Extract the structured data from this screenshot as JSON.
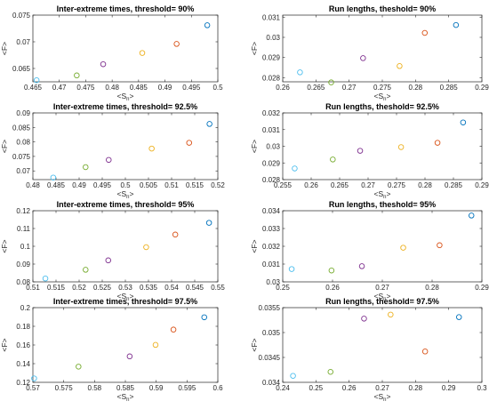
{
  "colors": [
    "#0072BD",
    "#D95319",
    "#EDB120",
    "#7E2F8E",
    "#77AC30",
    "#4DBEEE"
  ],
  "chart_data": [
    {
      "type": "scatter",
      "title": "Inter-extreme times, threshold= 90%",
      "xlabel_main": "<S",
      "xlabel_sub": "n",
      "xlabel_end": ">",
      "ylabel": "<F>",
      "xlim": [
        0.465,
        0.5
      ],
      "ylim": [
        0.0625,
        0.075
      ],
      "xticks": [
        "0.465",
        "0.47",
        "0.475",
        "0.48",
        "0.485",
        "0.49",
        "0.495",
        "0.5"
      ],
      "xtick_values": [
        0.465,
        0.47,
        0.475,
        0.48,
        0.485,
        0.49,
        0.495,
        0.5
      ],
      "yticks": [
        "0.065",
        "0.07",
        "0.075"
      ],
      "ytick_values": [
        0.065,
        0.07,
        0.075
      ],
      "points": [
        {
          "x": 0.498,
          "y": 0.0731
        },
        {
          "x": 0.4922,
          "y": 0.0696
        },
        {
          "x": 0.4857,
          "y": 0.0679
        },
        {
          "x": 0.4783,
          "y": 0.0658
        },
        {
          "x": 0.4733,
          "y": 0.0637
        },
        {
          "x": 0.4657,
          "y": 0.0628
        }
      ]
    },
    {
      "type": "scatter",
      "title": "Run lengths, theshold= 90%",
      "xlabel_main": "<S",
      "xlabel_sub": "n",
      "xlabel_end": ">",
      "ylabel": "<F>",
      "xlim": [
        0.26,
        0.29
      ],
      "ylim": [
        0.0278,
        0.0311
      ],
      "xticks": [
        "0.26",
        "0.265",
        "0.27",
        "0.275",
        "0.28",
        "0.285",
        "0.29"
      ],
      "xtick_values": [
        0.26,
        0.265,
        0.27,
        0.275,
        0.28,
        0.285,
        0.29
      ],
      "yticks": [
        "0.028",
        "0.029",
        "0.03",
        "0.031"
      ],
      "ytick_values": [
        0.028,
        0.029,
        0.03,
        0.031
      ],
      "points": [
        {
          "x": 0.2861,
          "y": 0.03061
        },
        {
          "x": 0.2814,
          "y": 0.03022
        },
        {
          "x": 0.2776,
          "y": 0.02858
        },
        {
          "x": 0.2721,
          "y": 0.02897
        },
        {
          "x": 0.2673,
          "y": 0.02777
        },
        {
          "x": 0.2626,
          "y": 0.02827
        }
      ]
    },
    {
      "type": "scatter",
      "title": "Inter-extreme times, threshold= 92.5%",
      "xlabel_main": "<S",
      "xlabel_sub": "n",
      "xlabel_end": ">",
      "ylabel": "<F>",
      "xlim": [
        0.48,
        0.52
      ],
      "ylim": [
        0.067,
        0.09
      ],
      "xticks": [
        "0.48",
        "0.485",
        "0.49",
        "0.495",
        "0.5",
        "0.505",
        "0.51",
        "0.515",
        "0.52"
      ],
      "xtick_values": [
        0.48,
        0.485,
        0.49,
        0.495,
        0.5,
        0.505,
        0.51,
        0.515,
        0.52
      ],
      "yticks": [
        "0.07",
        "0.075",
        "0.08",
        "0.085",
        "0.09"
      ],
      "ytick_values": [
        0.07,
        0.075,
        0.08,
        0.085,
        0.09
      ],
      "points": [
        {
          "x": 0.5182,
          "y": 0.0862
        },
        {
          "x": 0.5138,
          "y": 0.0797
        },
        {
          "x": 0.5057,
          "y": 0.0777
        },
        {
          "x": 0.4964,
          "y": 0.0738
        },
        {
          "x": 0.4914,
          "y": 0.0713
        },
        {
          "x": 0.4844,
          "y": 0.0677
        }
      ]
    },
    {
      "type": "scatter",
      "title": "Run lengths, theshold= 92.5%",
      "xlabel_main": "<S",
      "xlabel_sub": "n",
      "xlabel_end": ">",
      "ylabel": "<F>",
      "xlim": [
        0.255,
        0.29
      ],
      "ylim": [
        0.028,
        0.032
      ],
      "xticks": [
        "0.255",
        "0.26",
        "0.265",
        "0.27",
        "0.275",
        "0.28",
        "0.285",
        "0.29"
      ],
      "xtick_values": [
        0.255,
        0.26,
        0.265,
        0.27,
        0.275,
        0.28,
        0.285,
        0.29
      ],
      "yticks": [
        "0.028",
        "0.029",
        "0.03",
        "0.031",
        "0.032"
      ],
      "ytick_values": [
        0.028,
        0.029,
        0.03,
        0.031,
        0.032
      ],
      "points": [
        {
          "x": 0.2867,
          "y": 0.03143
        },
        {
          "x": 0.2822,
          "y": 0.03021
        },
        {
          "x": 0.2758,
          "y": 0.02995
        },
        {
          "x": 0.2686,
          "y": 0.02973
        },
        {
          "x": 0.2638,
          "y": 0.02921
        },
        {
          "x": 0.2571,
          "y": 0.02867
        }
      ]
    },
    {
      "type": "scatter",
      "title": "Inter-extreme times, threshold= 95%",
      "xlabel_main": "<S",
      "xlabel_sub": "n",
      "xlabel_end": ">",
      "ylabel": "<F>",
      "xlim": [
        0.51,
        0.55
      ],
      "ylim": [
        0.08,
        0.12
      ],
      "xticks": [
        "0.51",
        "0.515",
        "0.52",
        "0.525",
        "0.53",
        "0.535",
        "0.54",
        "0.545",
        "0.55"
      ],
      "xtick_values": [
        0.51,
        0.515,
        0.52,
        0.525,
        0.53,
        0.535,
        0.54,
        0.545,
        0.55
      ],
      "yticks": [
        "0.08",
        "0.09",
        "0.1",
        "0.11",
        "0.12"
      ],
      "ytick_values": [
        0.08,
        0.09,
        0.1,
        0.11,
        0.12
      ],
      "points": [
        {
          "x": 0.5481,
          "y": 0.1132
        },
        {
          "x": 0.5408,
          "y": 0.1066
        },
        {
          "x": 0.5345,
          "y": 0.0995
        },
        {
          "x": 0.5263,
          "y": 0.0921
        },
        {
          "x": 0.5214,
          "y": 0.0868
        },
        {
          "x": 0.5127,
          "y": 0.0819
        }
      ]
    },
    {
      "type": "scatter",
      "title": "Run lengths, theshold= 95%",
      "xlabel_main": "<S",
      "xlabel_sub": "n",
      "xlabel_end": ">",
      "ylabel": "<F>",
      "xlim": [
        0.25,
        0.29
      ],
      "ylim": [
        0.03,
        0.034
      ],
      "xticks": [
        "0.25",
        "0.26",
        "0.27",
        "0.28",
        "0.29"
      ],
      "xtick_values": [
        0.25,
        0.26,
        0.27,
        0.28,
        0.29
      ],
      "yticks": [
        "0.03",
        "0.031",
        "0.032",
        "0.033",
        "0.034"
      ],
      "ytick_values": [
        0.03,
        0.031,
        0.032,
        0.033,
        0.034
      ],
      "points": [
        {
          "x": 0.2879,
          "y": 0.03373
        },
        {
          "x": 0.2815,
          "y": 0.03206
        },
        {
          "x": 0.2742,
          "y": 0.03192
        },
        {
          "x": 0.2659,
          "y": 0.03088
        },
        {
          "x": 0.2598,
          "y": 0.03064
        },
        {
          "x": 0.2518,
          "y": 0.03072
        }
      ]
    },
    {
      "type": "scatter",
      "title": "Inter-extreme times, threshold= 97.5%",
      "xlabel_main": "<S",
      "xlabel_sub": "n",
      "xlabel_end": ">",
      "ylabel": "<F>",
      "xlim": [
        0.57,
        0.6
      ],
      "ylim": [
        0.12,
        0.2
      ],
      "xticks": [
        "0.57",
        "0.575",
        "0.58",
        "0.585",
        "0.59",
        "0.595",
        "0.6"
      ],
      "xtick_values": [
        0.57,
        0.575,
        0.58,
        0.585,
        0.59,
        0.595,
        0.6
      ],
      "yticks": [
        "0.12",
        "0.14",
        "0.16",
        "0.18",
        "0.2"
      ],
      "ytick_values": [
        0.12,
        0.14,
        0.16,
        0.18,
        0.2
      ],
      "points": [
        {
          "x": 0.5978,
          "y": 0.1897
        },
        {
          "x": 0.5928,
          "y": 0.1765
        },
        {
          "x": 0.5899,
          "y": 0.1601
        },
        {
          "x": 0.5857,
          "y": 0.1478
        },
        {
          "x": 0.5774,
          "y": 0.1368
        },
        {
          "x": 0.5702,
          "y": 0.1242
        }
      ]
    },
    {
      "type": "scatter",
      "title": "Run lengths, theshold= 97.5%",
      "xlabel_main": "<S",
      "xlabel_sub": "n",
      "xlabel_end": ">",
      "ylabel": "<F>",
      "xlim": [
        0.24,
        0.3
      ],
      "ylim": [
        0.034,
        0.0355
      ],
      "xticks": [
        "0.24",
        "0.25",
        "0.26",
        "0.27",
        "0.28",
        "0.29",
        "0.3"
      ],
      "xtick_values": [
        0.24,
        0.25,
        0.26,
        0.27,
        0.28,
        0.29,
        0.3
      ],
      "yticks": [
        "0.034",
        "0.0345",
        "0.035",
        "0.0355"
      ],
      "ytick_values": [
        0.034,
        0.0345,
        0.035,
        0.0355
      ],
      "points": [
        {
          "x": 0.2931,
          "y": 0.03531
        },
        {
          "x": 0.2829,
          "y": 0.03462
        },
        {
          "x": 0.2725,
          "y": 0.03536
        },
        {
          "x": 0.2645,
          "y": 0.03528
        },
        {
          "x": 0.2544,
          "y": 0.03421
        },
        {
          "x": 0.2431,
          "y": 0.03413
        }
      ]
    }
  ]
}
